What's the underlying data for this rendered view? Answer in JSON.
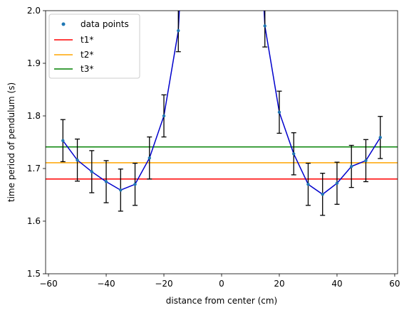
{
  "chart_data": {
    "type": "line",
    "xlabel": "distance from center (cm)",
    "ylabel": "time period of pendulum (s)",
    "xlim": [
      -61,
      61
    ],
    "ylim": [
      1.5,
      2.0
    ],
    "xticks": [
      -60,
      -40,
      -20,
      0,
      20,
      40,
      60
    ],
    "xtick_labels": [
      "−60",
      "−40",
      "−20",
      "0",
      "20",
      "40",
      "60"
    ],
    "yticks": [
      1.5,
      1.6,
      1.7,
      1.8,
      1.9,
      2.0
    ],
    "ytick_labels": [
      "1.5",
      "1.6",
      "1.7",
      "1.8",
      "1.9",
      "2.0"
    ],
    "grid": false,
    "legend_position": "top-left",
    "series": [
      {
        "name": "data points",
        "kind": "scatter-with-line",
        "marker_color": "#1f77b4",
        "line_color": "#0000cc",
        "error_bar": 0.04,
        "x": [
          -55,
          -50,
          -45,
          -40,
          -35,
          -30,
          -25,
          -20,
          -15,
          -10,
          10,
          15,
          20,
          25,
          30,
          35,
          40,
          45,
          50,
          55
        ],
        "y": [
          1.753,
          1.716,
          1.694,
          1.675,
          1.659,
          1.67,
          1.72,
          1.8,
          1.962,
          2.5,
          2.5,
          1.971,
          1.807,
          1.728,
          1.67,
          1.651,
          1.672,
          1.704,
          1.715,
          1.759
        ]
      },
      {
        "name": "t1*",
        "kind": "hline",
        "y": 1.68,
        "color": "#ff0000"
      },
      {
        "name": "t2*",
        "kind": "hline",
        "y": 1.711,
        "color": "#ffa500"
      },
      {
        "name": "t3*",
        "kind": "hline",
        "y": 1.741,
        "color": "#008000"
      }
    ]
  }
}
